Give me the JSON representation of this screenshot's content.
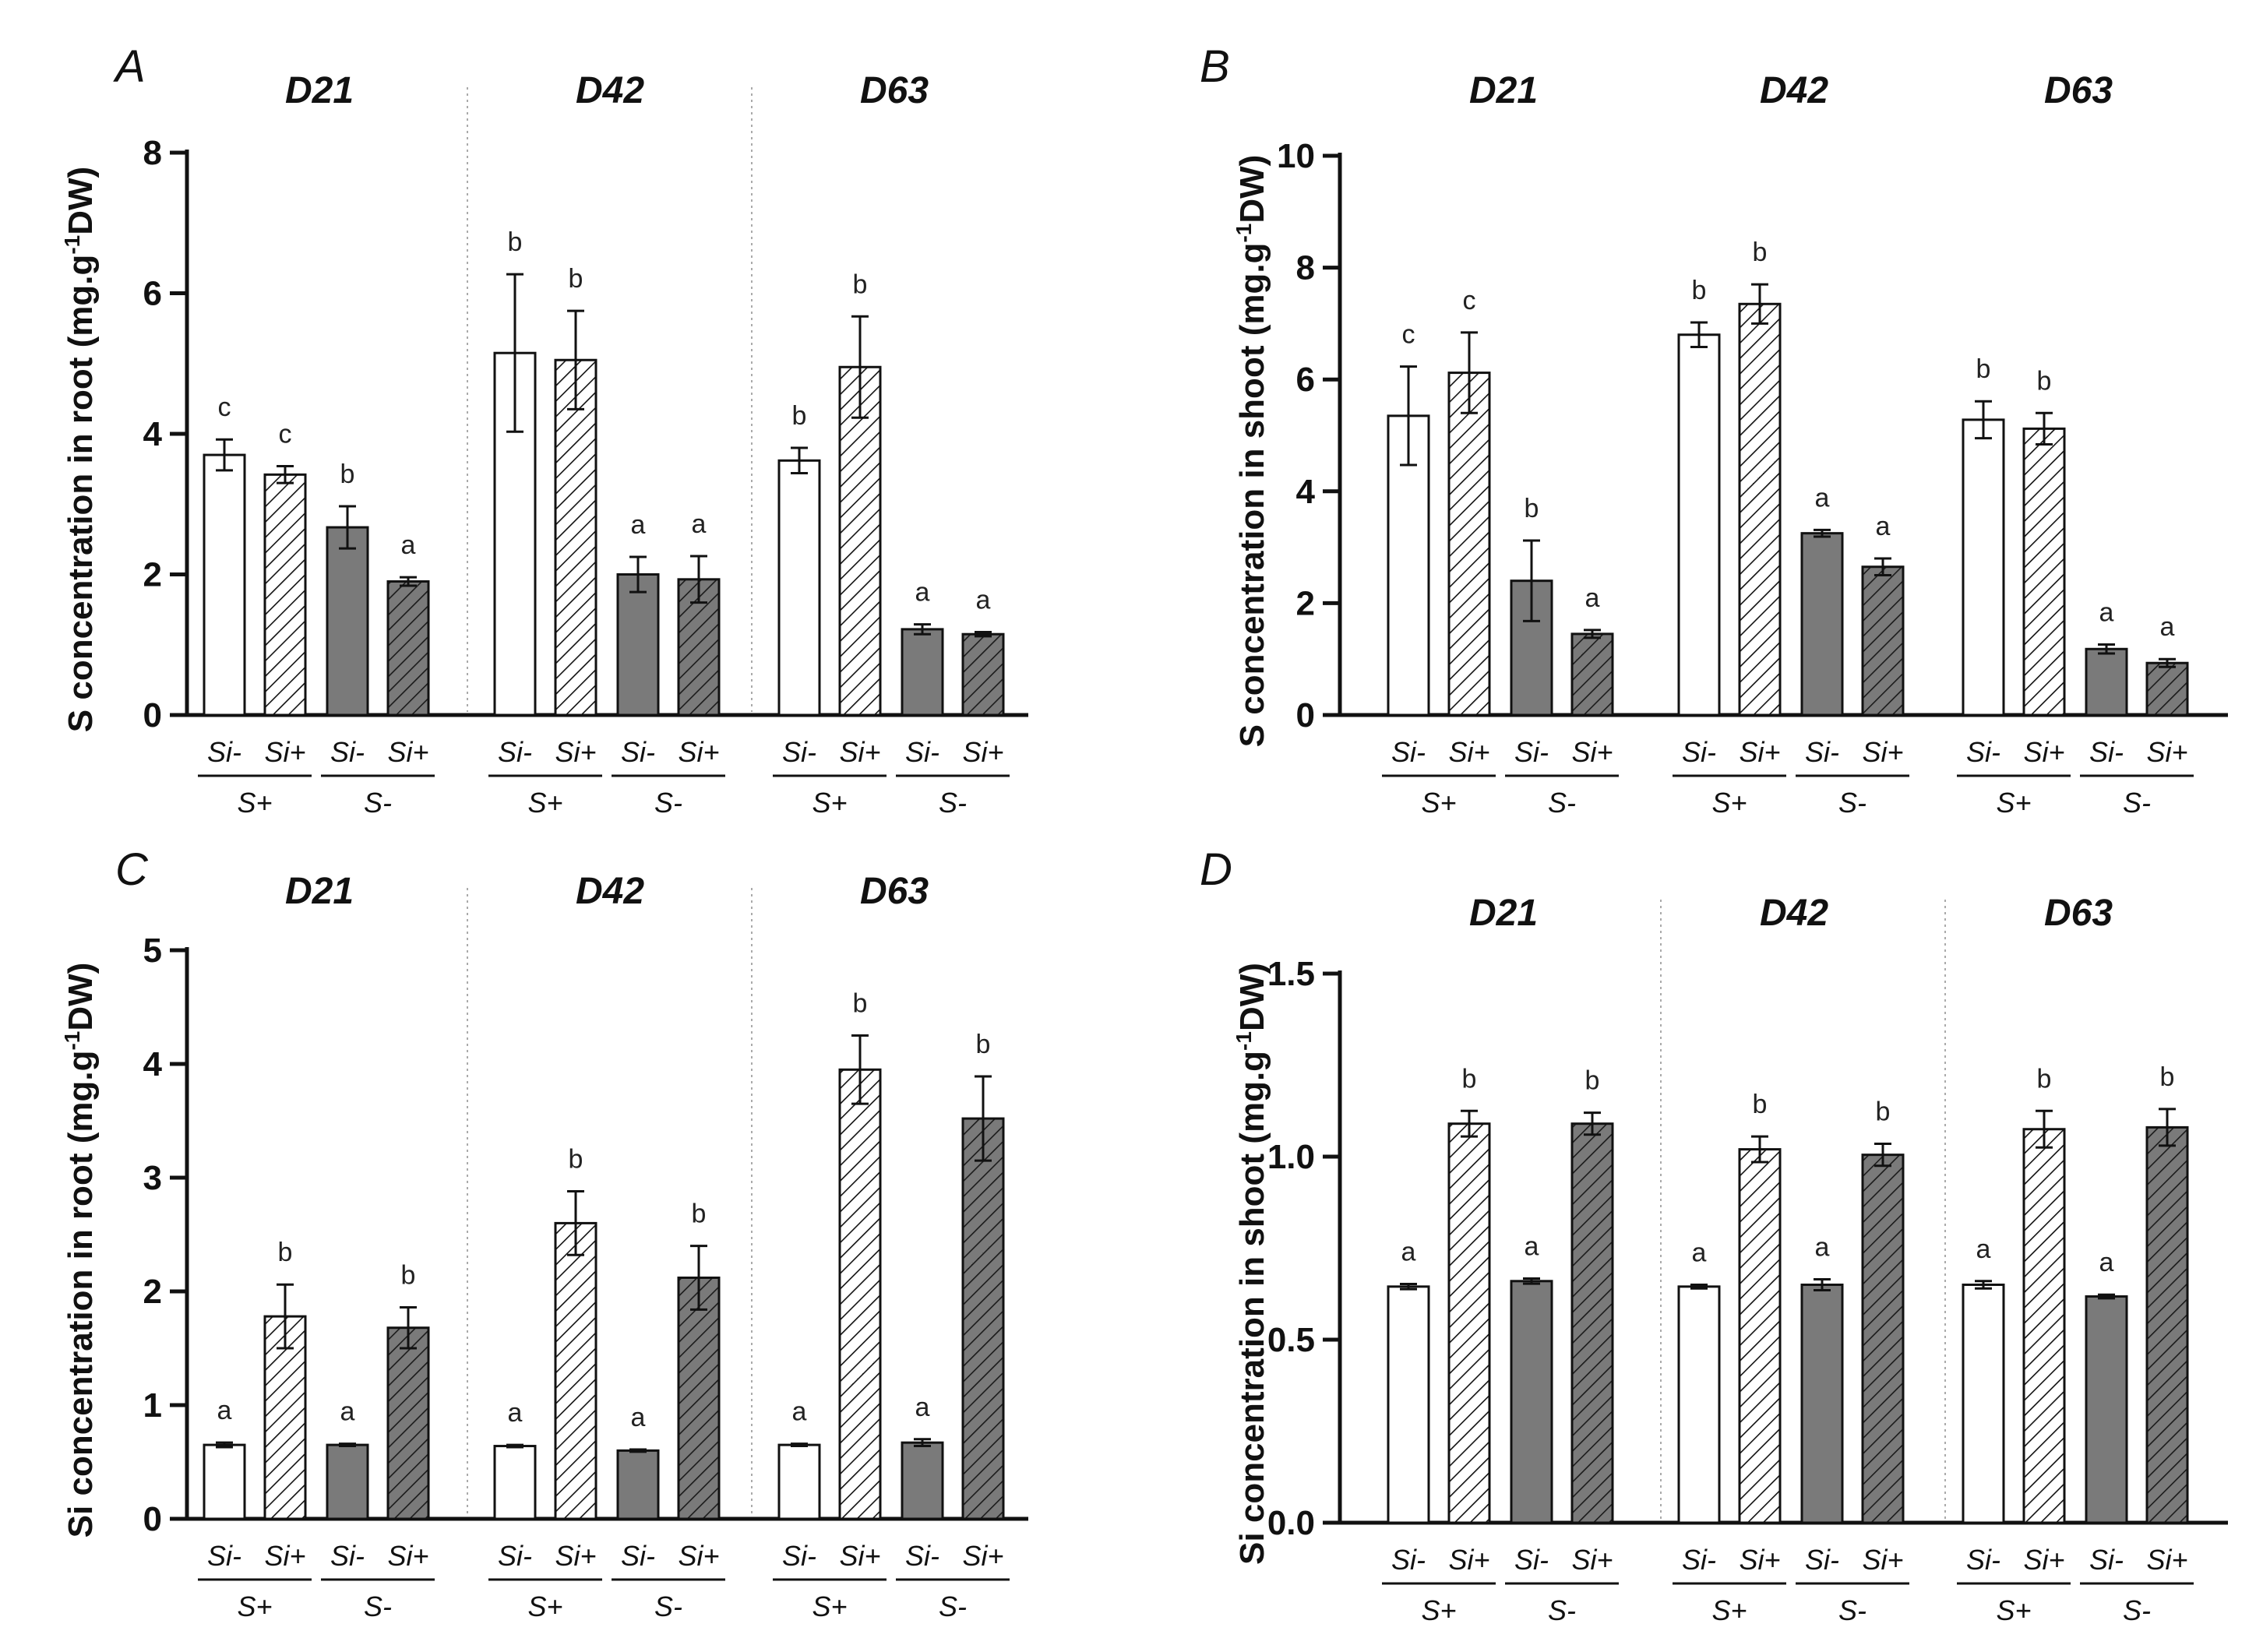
{
  "chart_data": [
    {
      "panel": "A",
      "type": "bar",
      "ylabel": "S concentration in root (mg.g",
      "ylabel_sup": "-1",
      "ylabel_tail": "DW)",
      "ylim": [
        0,
        8
      ],
      "yticks": [
        "0",
        "2",
        "4",
        "6",
        "8"
      ],
      "tick_values": [
        0,
        2,
        4,
        6,
        8
      ],
      "groups": [
        "D21",
        "D42",
        "D63"
      ],
      "bar_labels": [
        "Si-",
        "Si+",
        "Si-",
        "Si+"
      ],
      "s_labels": [
        "S+",
        "S-"
      ],
      "values": [
        [
          3.7,
          3.42,
          2.67,
          1.9
        ],
        [
          5.15,
          5.05,
          2.0,
          1.93
        ],
        [
          3.62,
          4.95,
          1.22,
          1.15
        ]
      ],
      "errors": [
        [
          0.22,
          0.12,
          0.3,
          0.06
        ],
        [
          1.12,
          0.7,
          0.25,
          0.33
        ],
        [
          0.18,
          0.72,
          0.07,
          0.03
        ]
      ],
      "letters": [
        [
          "c",
          "c",
          "b",
          "a"
        ],
        [
          "b",
          "b",
          "a",
          "a"
        ],
        [
          "b",
          "b",
          "a",
          "a"
        ]
      ]
    },
    {
      "panel": "B",
      "type": "bar",
      "ylabel": "S concentration in shoot (mg.g",
      "ylabel_sup": "-1",
      "ylabel_tail": "DW)",
      "ylim": [
        0,
        10
      ],
      "yticks": [
        "0",
        "2",
        "4",
        "6",
        "8",
        "10"
      ],
      "tick_values": [
        0,
        2,
        4,
        6,
        8,
        10
      ],
      "groups": [
        "D21",
        "D42",
        "D63"
      ],
      "bar_labels": [
        "Si-",
        "Si+",
        "Si-",
        "Si+"
      ],
      "s_labels": [
        "S+",
        "S-"
      ],
      "values": [
        [
          5.35,
          6.12,
          2.4,
          1.45
        ],
        [
          6.8,
          7.35,
          3.25,
          2.65
        ],
        [
          5.28,
          5.12,
          1.18,
          0.93
        ]
      ],
      "errors": [
        [
          0.88,
          0.72,
          0.72,
          0.07
        ],
        [
          0.22,
          0.35,
          0.06,
          0.15
        ],
        [
          0.33,
          0.28,
          0.08,
          0.07
        ]
      ],
      "letters": [
        [
          "c",
          "c",
          "b",
          "a"
        ],
        [
          "b",
          "b",
          "a",
          "a"
        ],
        [
          "b",
          "b",
          "a",
          "a"
        ]
      ]
    },
    {
      "panel": "C",
      "type": "bar",
      "ylabel": "Si concentration in root (mg.g",
      "ylabel_sup": "-1",
      "ylabel_tail": "DW)",
      "ylim": [
        0,
        5
      ],
      "yticks": [
        "0",
        "1",
        "2",
        "3",
        "4",
        "5"
      ],
      "tick_values": [
        0,
        1,
        2,
        3,
        4,
        5
      ],
      "groups": [
        "D21",
        "D42",
        "D63"
      ],
      "bar_labels": [
        "Si-",
        "Si+",
        "Si-",
        "Si+"
      ],
      "s_labels": [
        "S+",
        "S-"
      ],
      "values": [
        [
          0.65,
          1.78,
          0.65,
          1.68
        ],
        [
          0.64,
          2.6,
          0.6,
          2.12
        ],
        [
          0.65,
          3.95,
          0.67,
          3.52
        ]
      ],
      "errors": [
        [
          0.02,
          0.28,
          0.01,
          0.18
        ],
        [
          0.01,
          0.28,
          0.01,
          0.28
        ],
        [
          0.01,
          0.3,
          0.03,
          0.37
        ]
      ],
      "letters": [
        [
          "a",
          "b",
          "a",
          "b"
        ],
        [
          "a",
          "b",
          "a",
          "b"
        ],
        [
          "a",
          "b",
          "a",
          "b"
        ]
      ]
    },
    {
      "panel": "D",
      "type": "bar",
      "ylabel": "Si concentration in shoot (mg.g",
      "ylabel_sup": "-1",
      "ylabel_tail": "DW)",
      "ylim": [
        0,
        1.5
      ],
      "yticks": [
        "0.0",
        "0.5",
        "1.0",
        "1.5"
      ],
      "tick_values": [
        0,
        0.5,
        1.0,
        1.5
      ],
      "groups": [
        "D21",
        "D42",
        "D63"
      ],
      "bar_labels": [
        "Si-",
        "Si+",
        "Si-",
        "Si+"
      ],
      "s_labels": [
        "S+",
        "S-"
      ],
      "values": [
        [
          0.645,
          1.09,
          0.66,
          1.09
        ],
        [
          0.645,
          1.02,
          0.65,
          1.005
        ],
        [
          0.65,
          1.075,
          0.618,
          1.08
        ]
      ],
      "errors": [
        [
          0.007,
          0.035,
          0.007,
          0.03
        ],
        [
          0.005,
          0.035,
          0.015,
          0.03
        ],
        [
          0.01,
          0.05,
          0.005,
          0.05
        ]
      ],
      "letters": [
        [
          "a",
          "b",
          "a",
          "b"
        ],
        [
          "a",
          "b",
          "a",
          "b"
        ],
        [
          "a",
          "b",
          "a",
          "b"
        ]
      ]
    }
  ]
}
